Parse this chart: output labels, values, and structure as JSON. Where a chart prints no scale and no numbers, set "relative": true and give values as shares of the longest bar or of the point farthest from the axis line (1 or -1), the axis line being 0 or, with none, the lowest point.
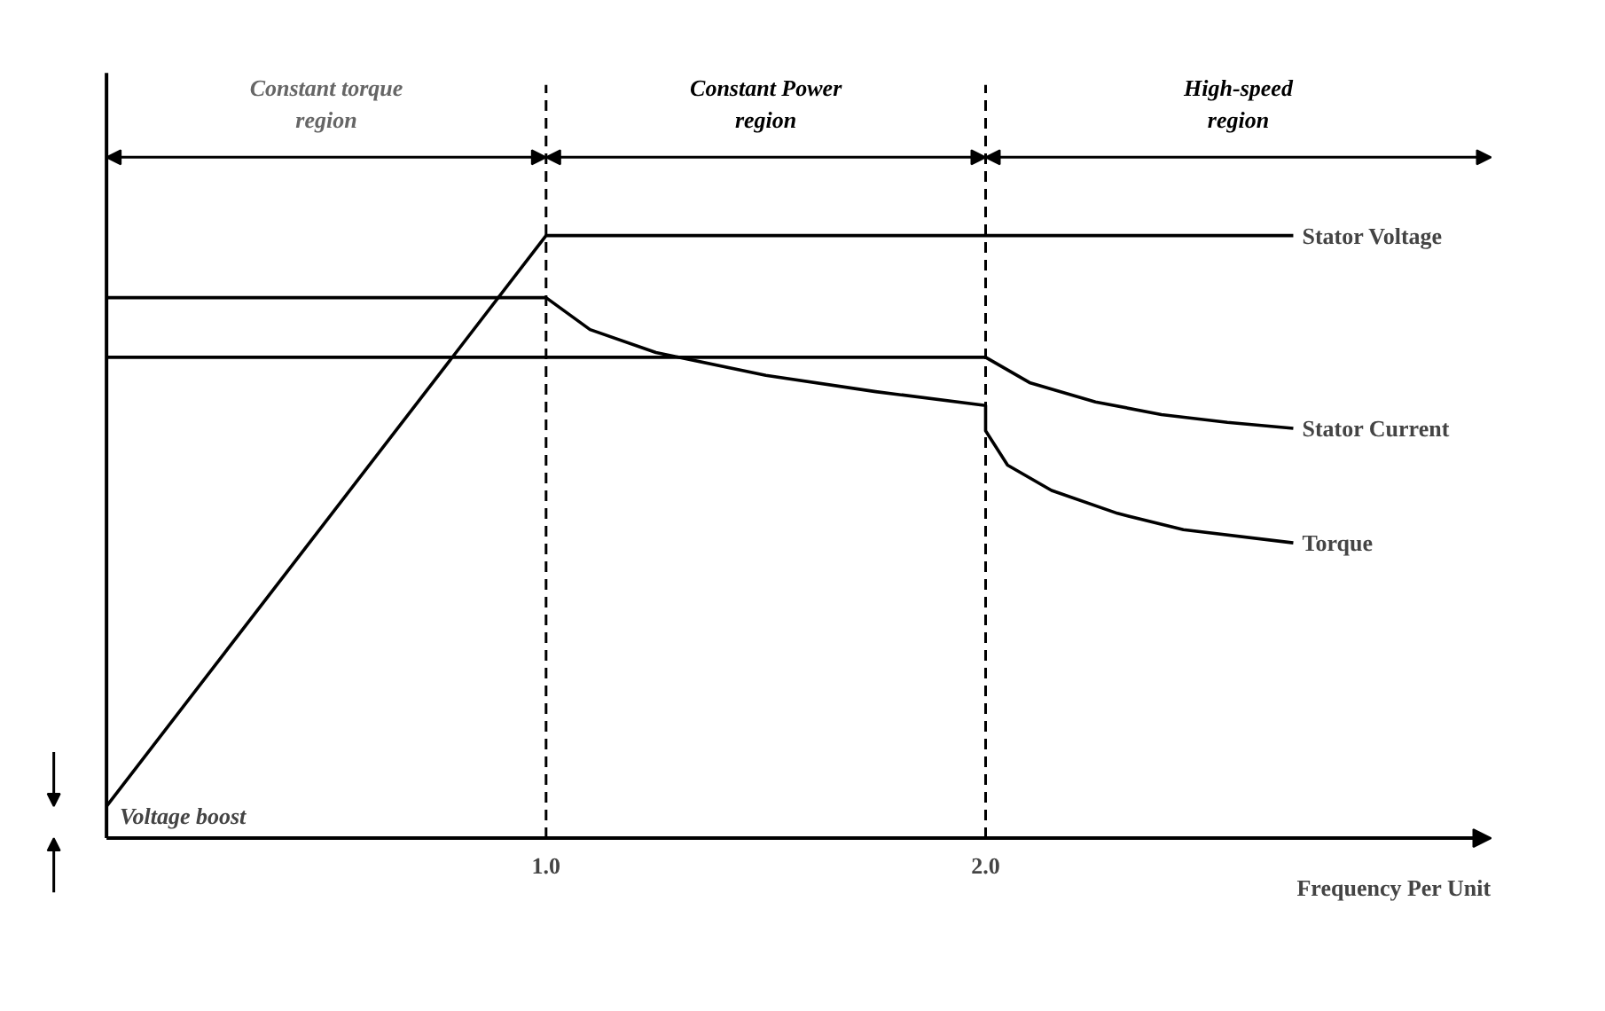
{
  "chart_data": {
    "type": "line",
    "relative": true,
    "xlabel": "Frequency Per Unit",
    "xlim": [
      0,
      3.15
    ],
    "xticks": [
      {
        "value": 1,
        "label": "1.0"
      },
      {
        "value": 2,
        "label": "2.0"
      }
    ],
    "series": [
      {
        "name": "Stator Voltage",
        "color": "#000000",
        "x": [
          0,
          1.0,
          2.7
        ],
        "values": [
          0.053,
          1.0,
          1.0
        ]
      },
      {
        "name": "Stator Current",
        "color": "#000000",
        "x": [
          0,
          2.0,
          2.0,
          2.1,
          2.25,
          2.4,
          2.55,
          2.7
        ],
        "values": [
          0.798,
          0.798,
          0.798,
          0.756,
          0.724,
          0.703,
          0.69,
          0.68
        ]
      },
      {
        "name": "Torque",
        "color": "#000000",
        "x": [
          0,
          1.0,
          1.1,
          1.25,
          1.5,
          1.75,
          2.0,
          2.0,
          2.05,
          2.15,
          2.3,
          2.45,
          2.7
        ],
        "values": [
          0.897,
          0.897,
          0.844,
          0.806,
          0.768,
          0.741,
          0.718,
          0.676,
          0.619,
          0.577,
          0.539,
          0.512,
          0.49
        ]
      }
    ],
    "ref_lines": [
      {
        "axis": "x",
        "value": 1.0,
        "line_style": "dashed"
      },
      {
        "axis": "x",
        "value": 2.0,
        "line_style": "dashed"
      }
    ],
    "annotations": [
      "Constant torque region",
      "Constant Power region",
      "High-speed region",
      "Voltage boost"
    ],
    "grid": false,
    "marker": "none",
    "line_style": "solid"
  }
}
